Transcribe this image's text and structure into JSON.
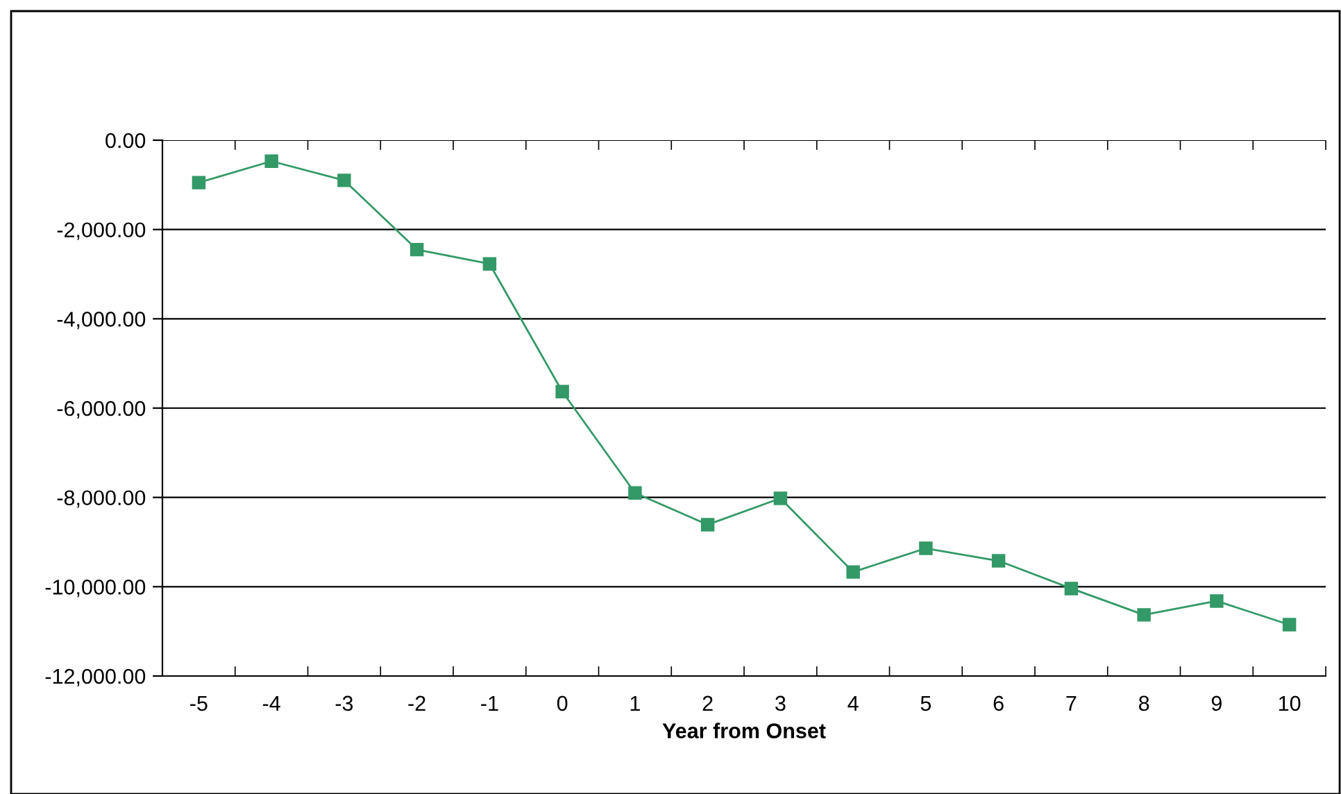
{
  "chart_data": {
    "type": "line",
    "xlabel": "Year from Onset",
    "categories": [
      "-5",
      "-4",
      "-3",
      "-2",
      "-1",
      "0",
      "1",
      "2",
      "3",
      "4",
      "5",
      "6",
      "7",
      "8",
      "9",
      "10"
    ],
    "series": [
      {
        "color": "#339966",
        "values": [
          -950,
          -470,
          -900,
          -2450,
          -2770,
          -5630,
          -7900,
          -8610,
          -8020,
          -9670,
          -9140,
          -9420,
          -10040,
          -10630,
          -10320,
          -10850
        ]
      }
    ],
    "ylim": [
      -12000,
      0
    ],
    "yticks": [
      {
        "value": -12000,
        "label": "-12,000.00"
      },
      {
        "value": -10000,
        "label": "-10,000.00"
      },
      {
        "value": -8000,
        "label": "-8,000.00"
      },
      {
        "value": -6000,
        "label": "-6,000.00"
      },
      {
        "value": -4000,
        "label": "-4,000.00"
      },
      {
        "value": -2000,
        "label": "-2,000.00"
      },
      {
        "value": 0,
        "label": "0.00"
      }
    ],
    "grid": "y",
    "marker": "square",
    "line_style": "solid",
    "legend": false
  }
}
